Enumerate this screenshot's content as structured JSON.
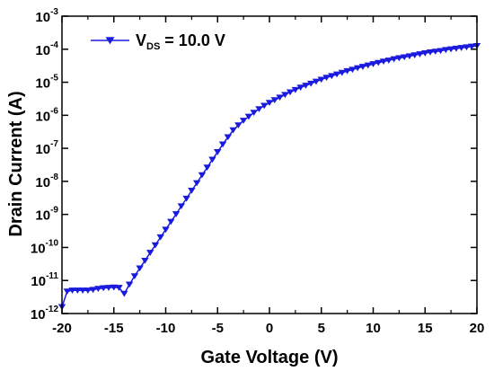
{
  "chart_data": {
    "type": "line",
    "xlabel": "Gate Voltage (V)",
    "ylabel": "Drain Current (A)",
    "xlim": [
      -20,
      20
    ],
    "ylim_exponent": [
      -12,
      -3
    ],
    "y_scale": "log",
    "x_ticks": [
      "-20",
      "-15",
      "-10",
      "-5",
      "0",
      "5",
      "10",
      "15",
      "20"
    ],
    "y_ticks": [
      {
        "base": "10",
        "exp": "-12"
      },
      {
        "base": "10",
        "exp": "-11"
      },
      {
        "base": "10",
        "exp": "-10"
      },
      {
        "base": "10",
        "exp": "-9"
      },
      {
        "base": "10",
        "exp": "-8"
      },
      {
        "base": "10",
        "exp": "-7"
      },
      {
        "base": "10",
        "exp": "-6"
      },
      {
        "base": "10",
        "exp": "-5"
      },
      {
        "base": "10",
        "exp": "-4"
      },
      {
        "base": "10",
        "exp": "-3"
      }
    ],
    "legend": {
      "placement": "top-left",
      "label_main": "V",
      "label_sub": "DS",
      "label_rest": " = 10.0 V"
    },
    "series": [
      {
        "name": "VDS = 10.0 V",
        "color": "#1a1adf",
        "marker": "down-triangle",
        "x": [
          -20.0,
          -19.5,
          -19.0,
          -18.5,
          -18.0,
          -17.5,
          -17.0,
          -16.5,
          -16.0,
          -15.5,
          -15.0,
          -14.5,
          -14.0,
          -13.5,
          -13.0,
          -12.5,
          -12.0,
          -11.5,
          -11.0,
          -10.5,
          -10.0,
          -9.5,
          -9.0,
          -8.5,
          -8.0,
          -7.5,
          -7.0,
          -6.5,
          -6.0,
          -5.5,
          -5.0,
          -4.5,
          -4.0,
          -3.5,
          -3.0,
          -2.5,
          -2.0,
          -1.5,
          -1.0,
          -0.5,
          0.0,
          0.5,
          1.0,
          1.5,
          2.0,
          2.5,
          3.0,
          3.5,
          4.0,
          4.5,
          5.0,
          5.5,
          6.0,
          6.5,
          7.0,
          7.5,
          8.0,
          8.5,
          9.0,
          9.5,
          10.0,
          10.5,
          11.0,
          11.5,
          12.0,
          12.5,
          13.0,
          13.5,
          14.0,
          14.5,
          15.0,
          15.5,
          16.0,
          16.5,
          17.0,
          17.5,
          18.0,
          18.5,
          19.0,
          19.5,
          20.0
        ],
        "log10_y": [
          -11.8,
          -11.33,
          -11.3,
          -11.3,
          -11.3,
          -11.3,
          -11.28,
          -11.25,
          -11.23,
          -11.22,
          -11.21,
          -11.22,
          -11.4,
          -11.12,
          -10.87,
          -10.63,
          -10.4,
          -10.16,
          -9.93,
          -9.69,
          -9.46,
          -9.22,
          -8.99,
          -8.75,
          -8.52,
          -8.28,
          -8.05,
          -7.81,
          -7.58,
          -7.34,
          -7.11,
          -6.88,
          -6.66,
          -6.45,
          -6.3,
          -6.16,
          -6.04,
          -5.92,
          -5.81,
          -5.71,
          -5.62,
          -5.54,
          -5.46,
          -5.38,
          -5.3,
          -5.23,
          -5.16,
          -5.1,
          -5.04,
          -4.98,
          -4.92,
          -4.86,
          -4.81,
          -4.76,
          -4.71,
          -4.66,
          -4.62,
          -4.57,
          -4.53,
          -4.49,
          -4.45,
          -4.41,
          -4.37,
          -4.34,
          -4.3,
          -4.27,
          -4.24,
          -4.21,
          -4.18,
          -4.15,
          -4.12,
          -4.09,
          -4.07,
          -4.05,
          -4.02,
          -4.0,
          -3.98,
          -3.96,
          -3.94,
          -3.92,
          -3.9
        ]
      }
    ]
  }
}
